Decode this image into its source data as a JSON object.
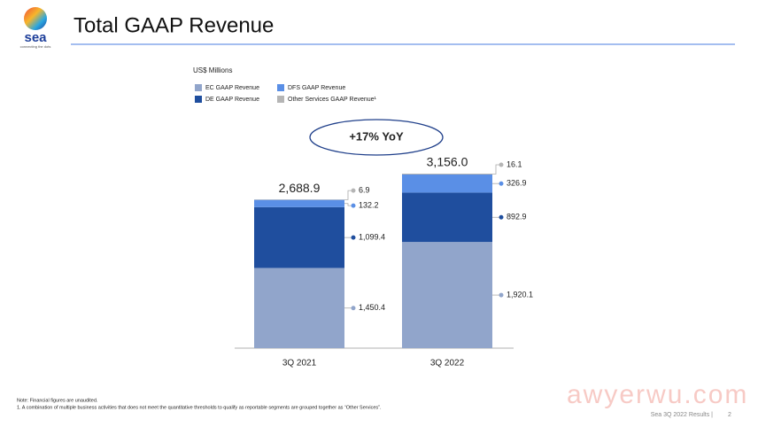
{
  "header": {
    "logo": "sea",
    "tagline": "connecting the dots",
    "title": "Total GAAP Revenue"
  },
  "chart_data": {
    "type": "stacked_bar",
    "unit_label": "US$ Millions",
    "annotation": "+17% YoY",
    "categories": [
      "3Q 2021",
      "3Q 2022"
    ],
    "series": [
      {
        "name": "EC GAAP Revenue",
        "color": "#91a5cb",
        "values": [
          1450.4,
          1920.1
        ],
        "value_labels": [
          "1,450.4",
          "1,920.1"
        ]
      },
      {
        "name": "DE GAAP Revenue",
        "color": "#1f4e9e",
        "values": [
          1099.4,
          892.9
        ],
        "value_labels": [
          "1,099.4",
          "892.9"
        ]
      },
      {
        "name": "DFS GAAP Revenue",
        "color": "#5a8fe6",
        "values": [
          132.2,
          326.9
        ],
        "value_labels": [
          "132.2",
          "326.9"
        ]
      },
      {
        "name": "Other Services GAAP Revenue¹",
        "color": "#b5b5b5",
        "values": [
          6.9,
          16.1
        ],
        "value_labels": [
          "6.9",
          "16.1"
        ]
      }
    ],
    "totals": [
      2688.9,
      3156.0
    ],
    "total_labels": [
      "2,688.9",
      "3,156.0"
    ]
  },
  "notes": [
    "Note: Financial figures are unaudited.",
    "1.      A combination of multiple business activities that does not meet the quantitative thresholds to qualify as reportable segments are grouped together as “Other Services”."
  ],
  "footer": {
    "text": "Sea 3Q 2022 Results |",
    "page": "2"
  },
  "watermark": "awyerwu.com"
}
